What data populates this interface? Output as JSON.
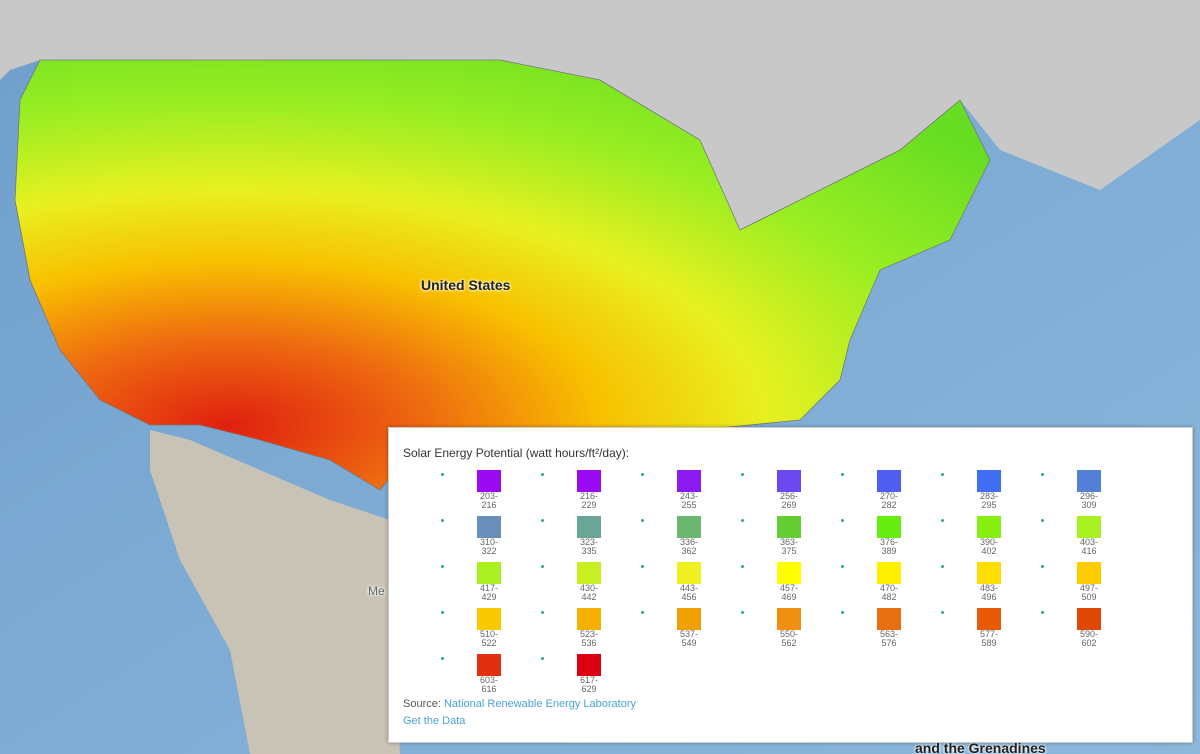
{
  "map_labels": {
    "country": "United States",
    "mexico_partial": "Me",
    "grenadines_partial": "and the Grenadines"
  },
  "legend": {
    "title": "Solar Energy Potential (watt hours/ft²/day):",
    "items": [
      {
        "range": "203-216",
        "color": "#9b0af0"
      },
      {
        "range": "216-229",
        "color": "#9b0af0"
      },
      {
        "range": "243-255",
        "color": "#8a1af0"
      },
      {
        "range": "256-269",
        "color": "#6a4af0"
      },
      {
        "range": "270-282",
        "color": "#4f5ef0"
      },
      {
        "range": "283-295",
        "color": "#3f6ef5"
      },
      {
        "range": "296-309",
        "color": "#5580d8"
      },
      {
        "range": "310-322",
        "color": "#6a8fb8"
      },
      {
        "range": "323-335",
        "color": "#6aa698"
      },
      {
        "range": "336-362",
        "color": "#6ab870"
      },
      {
        "range": "363-375",
        "color": "#66cc33"
      },
      {
        "range": "376-389",
        "color": "#66ee11"
      },
      {
        "range": "390-402",
        "color": "#88f011"
      },
      {
        "range": "403-416",
        "color": "#a8f020"
      },
      {
        "range": "417-429",
        "color": "#aaf020"
      },
      {
        "range": "430-442",
        "color": "#c8f020"
      },
      {
        "range": "443-456",
        "color": "#eef020"
      },
      {
        "range": "457-469",
        "color": "#ffff00"
      },
      {
        "range": "470-482",
        "color": "#fff000"
      },
      {
        "range": "483-496",
        "color": "#ffdd00"
      },
      {
        "range": "497-509",
        "color": "#ffcc00"
      },
      {
        "range": "510-522",
        "color": "#f8c800"
      },
      {
        "range": "523-536",
        "color": "#f5b000"
      },
      {
        "range": "537-549",
        "color": "#f0a000"
      },
      {
        "range": "550-562",
        "color": "#f09010"
      },
      {
        "range": "563-576",
        "color": "#e87010"
      },
      {
        "range": "577-589",
        "color": "#e85a08"
      },
      {
        "range": "590-602",
        "color": "#e04808"
      },
      {
        "range": "603-616",
        "color": "#e03010"
      },
      {
        "range": "617-629",
        "color": "#dd0010"
      }
    ],
    "source_label": "Source:",
    "source_link": "National Renewable Energy Laboratory",
    "get_data": "Get the Data"
  }
}
